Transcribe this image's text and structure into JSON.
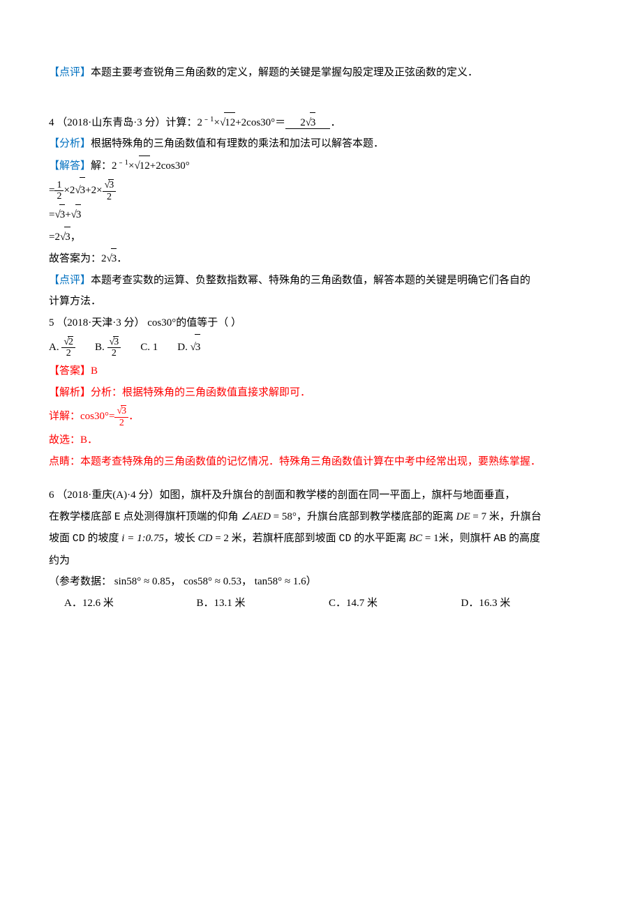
{
  "colors": {
    "labelBlue": "#0070c0",
    "answerRed": "#ff0000",
    "textBlack": "#000000",
    "background": "#ffffff"
  },
  "typography": {
    "base_fontsize": 15,
    "math_fontsize": 14,
    "line_height": 1.9,
    "font_family": "SimSun"
  },
  "section3_review": {
    "label": "【点评】",
    "text": "本题主要考查锐角三角函数的定义，解题的关键是掌握勾股定理及正弦函数的定义．"
  },
  "q4": {
    "prefix": "4 （2018·山东青岛·3 分）计算：2",
    "expr_mid": "×",
    "expr_sqrt": "12",
    "expr_after": "+2cos30°＝",
    "answer": "2",
    "answer_sqrt": "3",
    "suffix": "．",
    "analysis_label": "【分析】",
    "analysis_text": "根据特殊角的三角函数值和有理数的乘法和加法可以解答本题．",
    "solve_label": "【解答】",
    "solve_prefix": "解：2",
    "solve_sqrt": "12",
    "solve_after": "+2cos30°",
    "line2_frac1_num": "1",
    "line2_frac1_den": "2",
    "line2_mid1": "×2",
    "line2_sqrt1": "3",
    "line2_mid2": "+2×",
    "line2_frac2_num_sqrt": "3",
    "line2_frac2_den": "2",
    "line3_sqrt1": "3",
    "line3_plus": "+",
    "line3_sqrt2": "3",
    "line4_prefix": "=2",
    "line4_sqrt": "3",
    "line4_suffix": "，",
    "final_prefix": "故答案为：2",
    "final_sqrt": "3",
    "final_suffix": "．",
    "review_label": "【点评】",
    "review_text1": "本题考查实数的运算、负整数指数幂、特殊角的三角函数值，解答本题的关键是明确它们各自的",
    "review_text2": "计算方法．"
  },
  "q5": {
    "header": "5 （2018·天津·3 分） cos30°的值等于（  ）",
    "optA_label": "A. ",
    "optA_num_sqrt": "2",
    "optA_den": "2",
    "optB_label": "B. ",
    "optB_num_sqrt": "3",
    "optB_den": "2",
    "optC": "C. 1",
    "optD_label": "D. ",
    "optD_sqrt": "3",
    "answer_label": "【答案】",
    "answer": "B",
    "parse_label": "【解析】",
    "parse_text": "分析：根据特殊角的三角函数值直接求解即可．",
    "detail_prefix": "详解：cos30°=",
    "detail_num_sqrt": "3",
    "detail_den": "2",
    "detail_suffix": "．",
    "choice": "故选：B．",
    "tip": "点睛：本题考查特殊角的三角函数值的记忆情况．特殊角三角函数值计算在中考中经常出现，要熟练掌握．"
  },
  "q6": {
    "line1": "6 （2018·重庆(A)·4 分）如图，旗杆及升旗台的剖面和教学楼的剖面在同一平面上，旗杆与地面垂直，",
    "line2_p1": "在教学楼底部 ",
    "line2_E": "E",
    "line2_p2": " 点处测得旗杆顶端的仰角 ",
    "line2_angle": "∠AED",
    "line2_eq": " = 58°",
    "line2_p3": "，升旗台底部到教学楼底部的距离 ",
    "line2_DE": "DE",
    "line2_val": " = 7",
    "line2_p4": " 米，升旗台",
    "line3_p1": "坡面 ",
    "line3_CD": "CD",
    "line3_p2": " 的坡度 ",
    "line3_i": "i = 1:0.75",
    "line3_p3": "，坡长 ",
    "line3_CD2": "CD",
    "line3_cdval": " = 2",
    "line3_p4": " 米，若旗杆底部到坡面 ",
    "line3_CD3": "CD",
    "line3_p5": " 的水平距离 ",
    "line3_BC": "BC",
    "line3_bcval": " = 1",
    "line3_p6": "米，则旗杆 ",
    "line3_AB": "AB",
    "line3_p7": " 的高度",
    "line4": "约为",
    "ref_prefix": "（参考数据：",
    "ref1": " sin58° ≈ 0.85",
    "ref_comma": "，",
    "ref2": " cos58° ≈ 0.53",
    "ref3": " tan58° ≈ 1.6",
    "ref_suffix": "）",
    "optA": "A．12.6 米",
    "optB": "B．13.1 米",
    "optC": "C．14.7 米",
    "optD": "D．16.3 米"
  }
}
